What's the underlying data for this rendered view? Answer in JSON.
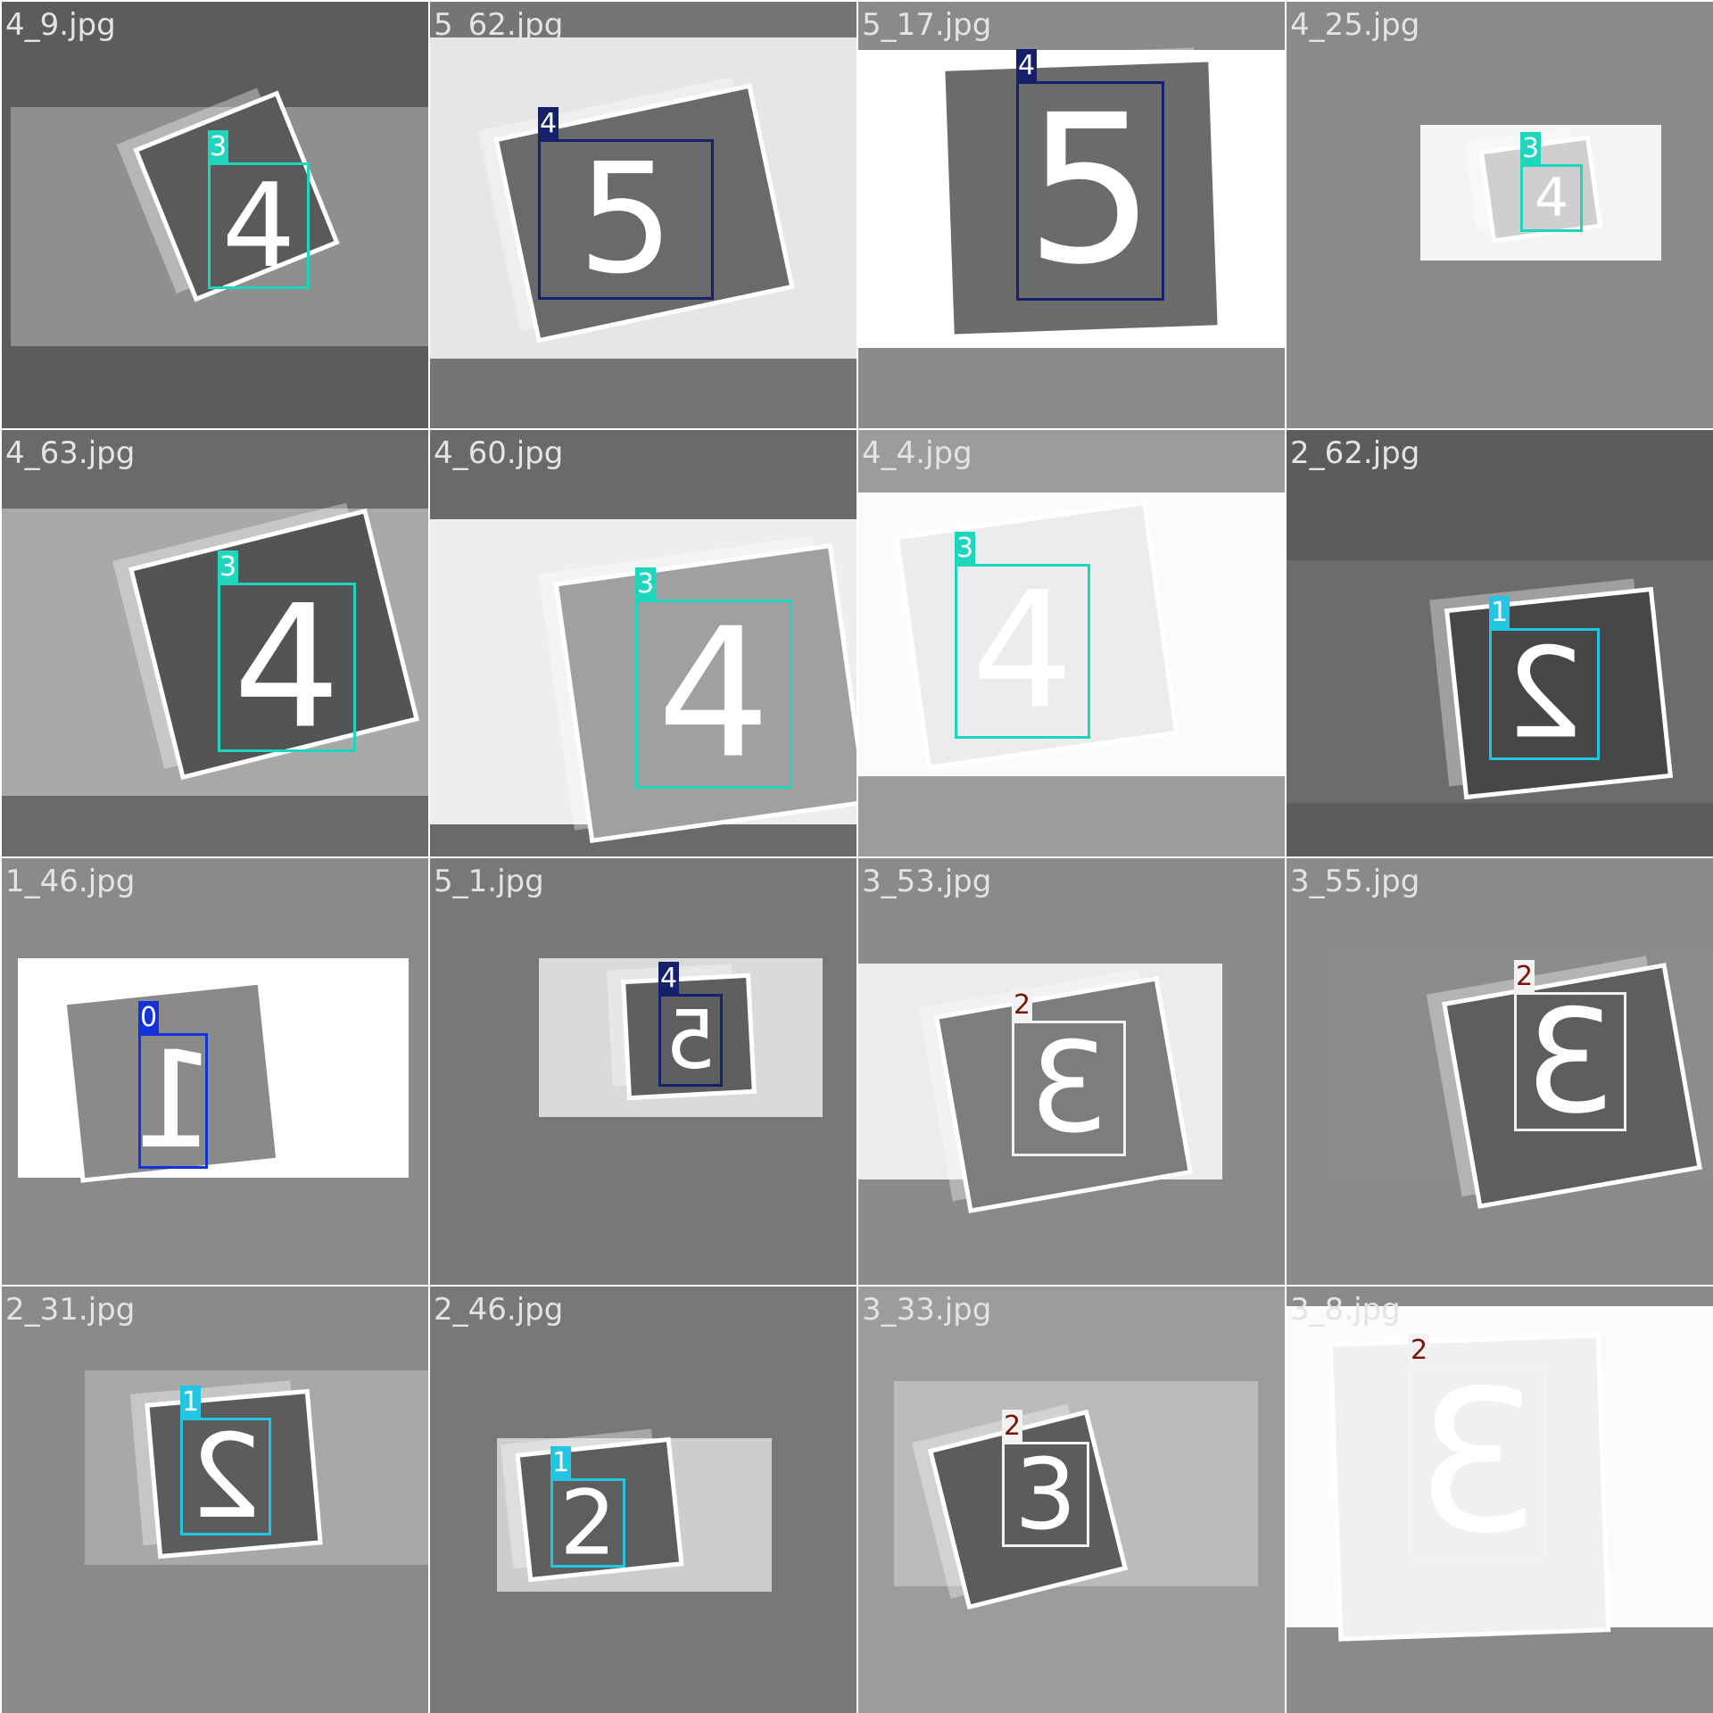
{
  "class_colors": {
    "0": {
      "box": "#1333d8",
      "tag_bg": "#1333d8",
      "tag_fg": "#ffffff"
    },
    "1": {
      "box": "#22c6e2",
      "tag_bg": "#22c6e2",
      "tag_fg": "#ffffff"
    },
    "2": {
      "box": "#f2f2f2",
      "tag_bg": "#f2f2f2",
      "tag_fg": "#7a1408"
    },
    "3": {
      "box": "#1dd6bc",
      "tag_bg": "#1dd6bc",
      "tag_fg": "#ffffff"
    },
    "4": {
      "box": "#15216a",
      "tag_bg": "#15216a",
      "tag_fg": "#ffffff"
    }
  },
  "tiles": [
    {
      "filename": "4_9.jpg",
      "class_label": "3",
      "digit": "4",
      "mirrored": false
    },
    {
      "filename": "5_62.jpg",
      "class_label": "4",
      "digit": "5",
      "mirrored": false
    },
    {
      "filename": "5_17.jpg",
      "class_label": "4",
      "digit": "5",
      "mirrored": false
    },
    {
      "filename": "4_25.jpg",
      "class_label": "3",
      "digit": "4",
      "mirrored": false
    },
    {
      "filename": "4_63.jpg",
      "class_label": "3",
      "digit": "4",
      "mirrored": false
    },
    {
      "filename": "4_60.jpg",
      "class_label": "3",
      "digit": "4",
      "mirrored": false
    },
    {
      "filename": "4_4.jpg",
      "class_label": "3",
      "digit": "4",
      "mirrored": false
    },
    {
      "filename": "2_62.jpg",
      "class_label": "1",
      "digit": "2",
      "mirrored": true
    },
    {
      "filename": "1_46.jpg",
      "class_label": "0",
      "digit": "1",
      "mirrored": true
    },
    {
      "filename": "5_1.jpg",
      "class_label": "4",
      "digit": "5",
      "mirrored": true
    },
    {
      "filename": "3_53.jpg",
      "class_label": "2",
      "digit": "3",
      "mirrored": true
    },
    {
      "filename": "3_55.jpg",
      "class_label": "2",
      "digit": "3",
      "mirrored": true
    },
    {
      "filename": "2_31.jpg",
      "class_label": "1",
      "digit": "2",
      "mirrored": true
    },
    {
      "filename": "2_46.jpg",
      "class_label": "1",
      "digit": "2",
      "mirrored": false
    },
    {
      "filename": "3_33.jpg",
      "class_label": "2",
      "digit": "3",
      "mirrored": false
    },
    {
      "filename": "3_8.jpg",
      "class_label": "2",
      "digit": "3",
      "mirrored": true
    }
  ]
}
